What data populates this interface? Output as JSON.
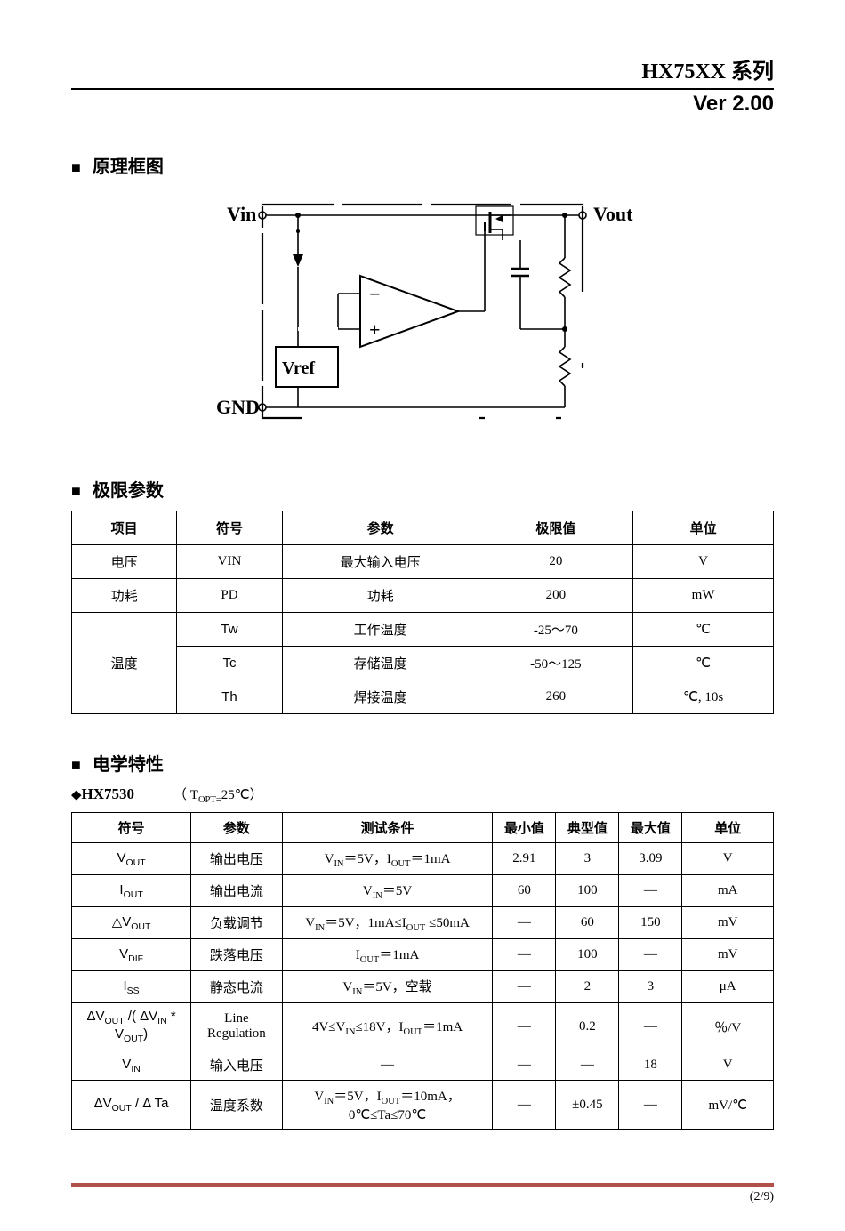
{
  "header": {
    "series": "HX75XX 系列",
    "version": "Ver 2.00"
  },
  "sections": {
    "block_diagram": "原理框图",
    "limits": "极限参数",
    "elec": "电学特性"
  },
  "diagram": {
    "vin": "Vin",
    "vout": "Vout",
    "vref": "Vref",
    "gnd": "GND",
    "stroke_color": "#000000",
    "bg": "#ffffff",
    "font_family": "Times New Roman",
    "line_width": 1.6,
    "thick_line_width": 2.2
  },
  "limits_table": {
    "headers": [
      "项目",
      "符号",
      "参数",
      "极限值",
      "单位"
    ],
    "rows": [
      {
        "item": "电压",
        "sym": "VIN",
        "param": "最大输入电压",
        "limit": "20",
        "unit": "V",
        "rowspan": 1
      },
      {
        "item": "功耗",
        "sym": "PD",
        "param": "功耗",
        "limit": "200",
        "unit": "mW",
        "rowspan": 1
      }
    ],
    "temp_group": {
      "item": "温度",
      "rows": [
        {
          "sym": "Tw",
          "param": "工作温度",
          "limit": "-25～70",
          "unit": "℃"
        },
        {
          "sym": "Tc",
          "param": "存储温度",
          "limit": "-50～125",
          "unit": "℃"
        },
        {
          "sym": "Th",
          "param": "焊接温度",
          "limit": "260",
          "unit": "℃, 10s"
        }
      ]
    },
    "col_widths": [
      "15%",
      "15%",
      "28%",
      "22%",
      "20%"
    ]
  },
  "elec": {
    "part_label": "HX7530",
    "condition": "（ T<sub>OPT=</sub>25℃）",
    "headers": [
      "符号",
      "参数",
      "测试条件",
      "最小值",
      "典型值",
      "最大值",
      "单位"
    ],
    "rows": [
      {
        "sym": "V<sub>OUT</sub>",
        "param": "输出电压",
        "cond": "V<sub>IN</sub>＝5V，I<sub>OUT</sub>＝1mA",
        "min": "2.91",
        "typ": "3",
        "max": "3.09",
        "unit": "V"
      },
      {
        "sym": "I<sub>OUT</sub>",
        "param": "输出电流",
        "cond": "V<sub>IN</sub>＝5V",
        "min": "60",
        "typ": "100",
        "max": "—",
        "unit": "mA"
      },
      {
        "sym": "△V<sub>OUT</sub>",
        "param": "负载调节",
        "cond": "V<sub>IN</sub>＝5V，1mA≤I<sub>OUT</sub> ≤50mA",
        "min": "—",
        "typ": "60",
        "max": "150",
        "unit": "mV"
      },
      {
        "sym": "V<sub>DIF</sub>",
        "param": "跌落电压",
        "cond": "I<sub>OUT</sub>＝1mA",
        "min": "—",
        "typ": "100",
        "max": "—",
        "unit": "mV"
      },
      {
        "sym": "I<sub>SS</sub>",
        "param": "静态电流",
        "cond": "V<sub>IN</sub>＝5V，空载",
        "min": "—",
        "typ": "2",
        "max": "3",
        "unit": "μA"
      },
      {
        "sym": "ΔV<sub>OUT</sub> /( ΔV<sub>IN</sub> * V<sub>OUT</sub>)",
        "param": "Line Regulation",
        "cond": "4V≤V<sub>IN</sub>≤18V，I<sub>OUT</sub>＝1mA",
        "min": "—",
        "typ": "0.2",
        "max": "—",
        "unit": "％/V"
      },
      {
        "sym": "V<sub>IN</sub>",
        "param": "输入电压",
        "cond": "—",
        "min": "—",
        "typ": "—",
        "max": "18",
        "unit": "V"
      },
      {
        "sym": "ΔV<sub>OUT</sub> / Δ Ta",
        "param": "温度系数",
        "cond": "V<sub>IN</sub>＝5V，I<sub>OUT</sub>＝10mA，<br>0℃≤Ta≤70℃",
        "min": "—",
        "typ": "±0.45",
        "max": "—",
        "unit": "mV/℃"
      }
    ],
    "col_widths": [
      "17%",
      "13%",
      "30%",
      "9%",
      "9%",
      "9%",
      "13%"
    ]
  },
  "footer": {
    "page": "(2/9)",
    "line_color": "#b05048"
  }
}
